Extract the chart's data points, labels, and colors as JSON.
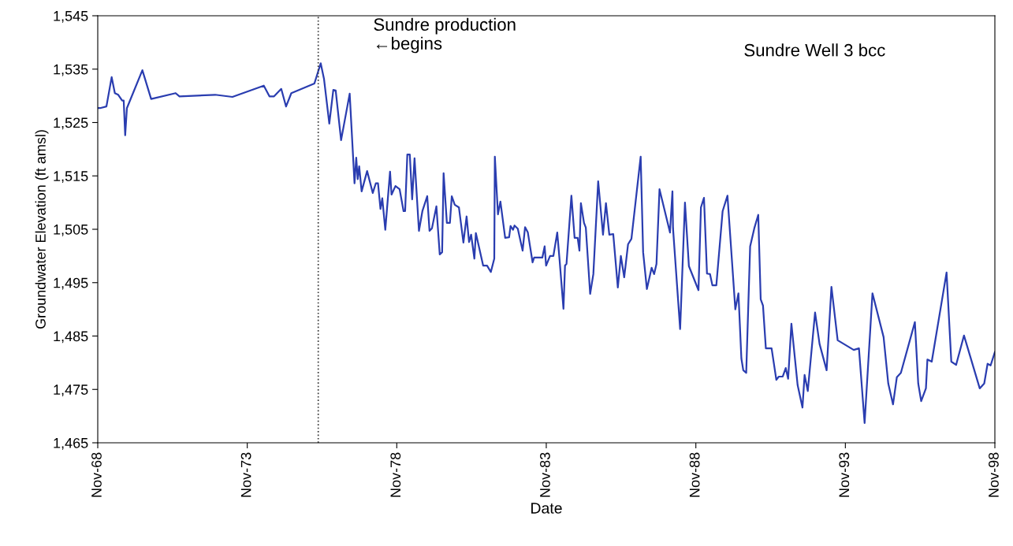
{
  "chart_data": {
    "type": "line",
    "xlabel": "Date",
    "ylabel": "Groundwater Elevation (ft amsl)",
    "annotations": [
      "Sundre production\n←begins",
      "Sundre Well 3 bcc"
    ],
    "xlim": [
      "1968-11-01",
      "1998-11-01"
    ],
    "xticks": [
      {
        "value": "1968-11-01",
        "label": "Nov-68"
      },
      {
        "value": "1973-11-01",
        "label": "Nov-73"
      },
      {
        "value": "1978-11-01",
        "label": "Nov-78"
      },
      {
        "value": "1983-11-01",
        "label": "Nov-83"
      },
      {
        "value": "1988-11-01",
        "label": "Nov-88"
      },
      {
        "value": "1993-11-01",
        "label": "Nov-93"
      },
      {
        "value": "1998-11-01",
        "label": "Nov-98"
      }
    ],
    "ylim": [
      1465,
      1545
    ],
    "yticks": [
      {
        "value": 1465,
        "label": "1,465"
      },
      {
        "value": 1475,
        "label": "1,475"
      },
      {
        "value": 1485,
        "label": "1,485"
      },
      {
        "value": 1495,
        "label": "1,495"
      },
      {
        "value": 1505,
        "label": "1,505"
      },
      {
        "value": 1515,
        "label": "1,515"
      },
      {
        "value": 1525,
        "label": "1,525"
      },
      {
        "value": 1535,
        "label": "1,535"
      },
      {
        "value": 1545,
        "label": "1,545"
      }
    ],
    "grid": false,
    "legend": false,
    "marker": "none",
    "line_style": "solid",
    "ref_lines": [
      {
        "axis": "x",
        "value": "1976-03-17",
        "label": null,
        "color": "#333333",
        "line_style": "dotted"
      }
    ],
    "series": [
      {
        "color": "#2a3db0",
        "x": [
          "1968-11-01",
          "1968-11-29",
          "1969-02-15",
          "1969-04-20",
          "1969-05-29",
          "1969-07-09",
          "1969-08-26",
          "1969-09-14",
          "1969-10-02",
          "1969-10-23",
          "1970-04-30",
          "1970-08-15",
          "1971-06-10",
          "1971-07-27",
          "1972-10-05",
          "1973-05-04",
          "1974-05-22",
          "1974-07-30",
          "1974-09-24",
          "1974-12-21",
          "1975-02-18",
          "1975-04-23",
          "1976-01-30",
          "1976-04-16",
          "1976-05-26",
          "1976-07-30",
          "1976-09-17",
          "1976-10-16",
          "1976-12-21",
          "1977-04-05",
          "1977-06-03",
          "1977-06-24",
          "1977-07-12",
          "1977-07-30",
          "1977-08-29",
          "1977-11-04",
          "1978-01-12",
          "1978-02-18",
          "1978-03-17",
          "1978-04-16",
          "1978-05-08",
          "1978-06-14",
          "1978-08-11",
          "1978-08-29",
          "1978-10-16",
          "1978-12-06",
          "1979-01-23",
          "1979-02-11",
          "1979-03-10",
          "1979-04-09",
          "1979-05-08",
          "1979-06-06",
          "1979-07-30",
          "1979-09-10",
          "1979-11-08",
          "1979-12-06",
          "1980-01-05",
          "1980-02-28",
          "1980-04-09",
          "1980-05-08",
          "1980-05-26",
          "1980-07-05",
          "1980-08-11",
          "1980-09-03",
          "1980-10-09",
          "1980-11-29",
          "1981-01-23",
          "1981-03-03",
          "1981-04-02",
          "1981-04-27",
          "1981-06-06",
          "1981-06-24",
          "1981-09-21",
          "1981-11-08",
          "1981-12-24",
          "1982-02-04",
          "1982-02-11",
          "1982-03-21",
          "1982-04-20",
          "1982-06-17",
          "1982-08-04",
          "1982-08-22",
          "1982-09-21",
          "1982-10-09",
          "1982-11-18",
          "1983-01-16",
          "1983-02-15",
          "1983-03-21",
          "1983-05-18",
          "1983-06-06",
          "1983-09-14",
          "1983-10-12",
          "1983-10-30",
          "1983-12-17",
          "1984-01-27",
          "1984-03-14",
          "1984-04-12",
          "1984-05-29",
          "1984-06-17",
          "1984-07-05",
          "1984-09-03",
          "1984-10-12",
          "1984-11-18",
          "1984-12-10",
          "1984-12-28",
          "1985-02-04",
          "1985-02-26",
          "1985-04-20",
          "1985-05-29",
          "1985-07-27",
          "1985-09-24",
          "1985-10-30",
          "1985-12-10",
          "1986-01-27",
          "1986-03-24",
          "1986-04-30",
          "1986-06-10",
          "1986-07-27",
          "1986-09-06",
          "1986-12-28",
          "1987-01-27",
          "1987-03-14",
          "1987-05-11",
          "1987-06-10",
          "1987-07-09",
          "1987-08-15",
          "1987-12-21",
          "1988-01-20",
          "1988-01-27",
          "1988-04-23",
          "1988-06-21",
          "1988-08-08",
          "1988-12-03",
          "1989-01-02",
          "1989-02-08",
          "1989-03-17",
          "1989-04-23",
          "1989-05-22",
          "1989-07-09",
          "1989-09-24",
          "1989-11-22",
          "1990-02-26",
          "1990-04-05",
          "1990-05-11",
          "1990-06-03",
          "1990-07-09",
          "1990-08-26",
          "1990-10-16",
          "1990-12-03",
          "1991-01-02",
          "1991-01-30",
          "1991-03-06",
          "1991-05-15",
          "1991-07-12",
          "1991-08-11",
          "1991-09-28",
          "1991-11-04",
          "1991-12-03",
          "1992-01-12",
          "1992-03-28",
          "1992-05-26",
          "1992-06-21",
          "1992-07-30",
          "1992-10-27",
          "1992-12-21",
          "1993-03-17",
          "1993-05-15",
          "1993-07-30",
          "1994-02-11",
          "1994-04-16",
          "1994-06-24",
          "1994-09-28",
          "1995-02-11",
          "1995-04-09",
          "1995-06-06",
          "1995-07-23",
          "1995-09-10",
          "1996-02-28",
          "1996-04-09",
          "1996-05-15",
          "1996-07-12",
          "1996-07-30",
          "1996-09-21",
          "1997-03-21",
          "1997-05-18",
          "1997-07-16",
          "1997-10-20",
          "1998-04-30",
          "1998-06-24",
          "1998-08-04",
          "1998-09-10",
          "1998-11-01"
        ],
        "values": [
          1527.7,
          1527.7,
          1528.0,
          1533.5,
          1530.5,
          1530.2,
          1529.1,
          1529.1,
          1522.6,
          1527.7,
          1534.8,
          1529.4,
          1530.5,
          1529.9,
          1530.2,
          1529.8,
          1531.9,
          1529.9,
          1529.9,
          1531.3,
          1528.0,
          1530.5,
          1532.3,
          1536.1,
          1533.2,
          1524.8,
          1531.1,
          1531.0,
          1521.7,
          1530.4,
          1513.6,
          1518.4,
          1514.4,
          1516.8,
          1512.1,
          1515.9,
          1511.8,
          1513.6,
          1513.6,
          1508.8,
          1510.8,
          1504.9,
          1515.8,
          1511.5,
          1513.1,
          1512.5,
          1508.4,
          1508.4,
          1519.0,
          1519.0,
          1510.6,
          1518.3,
          1504.7,
          1508.4,
          1511.2,
          1504.7,
          1505.2,
          1509.3,
          1500.3,
          1500.7,
          1515.5,
          1506.2,
          1506.2,
          1511.2,
          1509.6,
          1509.1,
          1502.5,
          1507.4,
          1502.6,
          1504.0,
          1499.5,
          1504.3,
          1498.2,
          1498.2,
          1497.0,
          1499.5,
          1518.6,
          1507.8,
          1510.2,
          1503.4,
          1503.5,
          1505.6,
          1504.9,
          1505.7,
          1505.1,
          1501.0,
          1505.4,
          1504.4,
          1498.8,
          1499.7,
          1499.7,
          1501.8,
          1498.2,
          1500.0,
          1500.0,
          1504.4,
          1499.2,
          1490.1,
          1498.2,
          1498.5,
          1511.3,
          1503.4,
          1503.4,
          1501.0,
          1509.9,
          1506.2,
          1505.3,
          1492.9,
          1496.6,
          1514.0,
          1504.0,
          1509.9,
          1504.0,
          1504.1,
          1494.1,
          1500.0,
          1496.0,
          1502.2,
          1503.2,
          1518.6,
          1500.7,
          1493.8,
          1497.8,
          1496.6,
          1498.5,
          1512.5,
          1504.4,
          1512.1,
          1505.2,
          1486.3,
          1510.0,
          1498.1,
          1493.6,
          1509.1,
          1510.9,
          1496.7,
          1496.6,
          1494.5,
          1494.5,
          1508.4,
          1511.3,
          1490.0,
          1493.0,
          1480.8,
          1478.6,
          1478.1,
          1501.8,
          1505.2,
          1507.7,
          1491.9,
          1490.7,
          1482.7,
          1482.7,
          1476.8,
          1477.4,
          1477.4,
          1479.0,
          1477.0,
          1487.3,
          1475.8,
          1471.6,
          1477.7,
          1474.7,
          1489.4,
          1483.5,
          1478.6,
          1494.2,
          1484.2,
          1482.4,
          1482.7,
          1468.7,
          1493.0,
          1484.8,
          1476.1,
          1472.2,
          1477.3,
          1478.1,
          1487.6,
          1476.1,
          1472.8,
          1475.2,
          1480.6,
          1480.2,
          1496.9,
          1480.2,
          1479.6,
          1485.1,
          1475.2,
          1476.1,
          1479.8,
          1479.5,
          1482.0
        ]
      }
    ]
  }
}
